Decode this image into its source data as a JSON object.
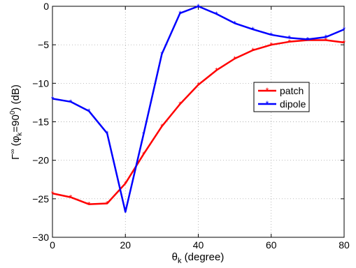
{
  "chart_data": {
    "type": "line",
    "x": [
      0,
      5,
      10,
      15,
      20,
      25,
      30,
      35,
      40,
      45,
      50,
      55,
      60,
      65,
      70,
      75,
      80
    ],
    "series": [
      {
        "name": "patch",
        "color": "#ff0000",
        "values": [
          -24.3,
          -24.8,
          -25.7,
          -25.6,
          -23.0,
          -19.2,
          -15.6,
          -12.7,
          -10.2,
          -8.3,
          -6.8,
          -5.7,
          -5.0,
          -4.6,
          -4.4,
          -4.4,
          -4.7
        ]
      },
      {
        "name": "dipole",
        "color": "#0000ff",
        "values": [
          -12.0,
          -12.4,
          -13.6,
          -16.5,
          -26.7,
          -16.6,
          -6.2,
          -0.9,
          0.0,
          -1.0,
          -2.2,
          -3.0,
          -3.7,
          -4.1,
          -4.3,
          -4.0,
          -3.0
        ]
      }
    ],
    "xlabel": {
      "main": "θ",
      "sub": "k",
      "rest": " (degree)"
    },
    "ylabel": {
      "a": "Γ",
      "b": "∞",
      "c": " (φ",
      "d": "k",
      "e": "=90",
      "f": "0",
      "g": ") (dB)"
    },
    "xlim": [
      0,
      80
    ],
    "ylim": [
      -30,
      0
    ],
    "xticks": [
      0,
      20,
      40,
      60,
      80
    ],
    "yticks": [
      0,
      -5,
      -10,
      -15,
      -20,
      -25,
      -30
    ],
    "xtick_labels": [
      "0",
      "20",
      "40",
      "60",
      "80"
    ],
    "ytick_labels": [
      "0",
      "−5",
      "−10",
      "−15",
      "−20",
      "−25",
      "−30"
    ],
    "grid": true,
    "legend_position": "center-right",
    "legend": [
      "patch",
      "dipole"
    ]
  }
}
